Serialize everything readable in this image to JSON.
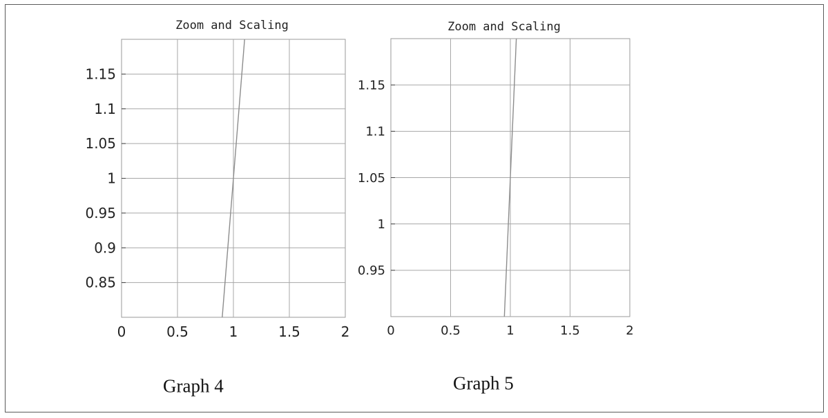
{
  "chart_data": [
    {
      "type": "line",
      "title": "Zoom  and Scaling",
      "caption": "Graph 4",
      "xlim": [
        0,
        2
      ],
      "ylim": [
        0.8,
        1.2
      ],
      "xticks": [
        "0",
        "0.5",
        "1",
        "1.5",
        "2"
      ],
      "yticks": [
        "0.85",
        "0.9",
        "0.95",
        "1",
        "1.05",
        "1.1",
        "1.15"
      ],
      "grid": true,
      "series": [
        {
          "x": [
            0.9,
            1.1
          ],
          "y": [
            0.8,
            1.2
          ]
        }
      ]
    },
    {
      "type": "line",
      "title": "Zoom  and Scaling",
      "caption": "Graph 5",
      "xlim": [
        0,
        2
      ],
      "ylim": [
        0.9,
        1.2
      ],
      "xticks": [
        "0",
        "0.5",
        "1",
        "1.5",
        "2"
      ],
      "yticks": [
        "0.95",
        "1",
        "1.05",
        "1.1",
        "1.15"
      ],
      "grid": true,
      "series": [
        {
          "x": [
            0.95,
            1.05
          ],
          "y": [
            0.9,
            1.2
          ]
        }
      ]
    }
  ]
}
